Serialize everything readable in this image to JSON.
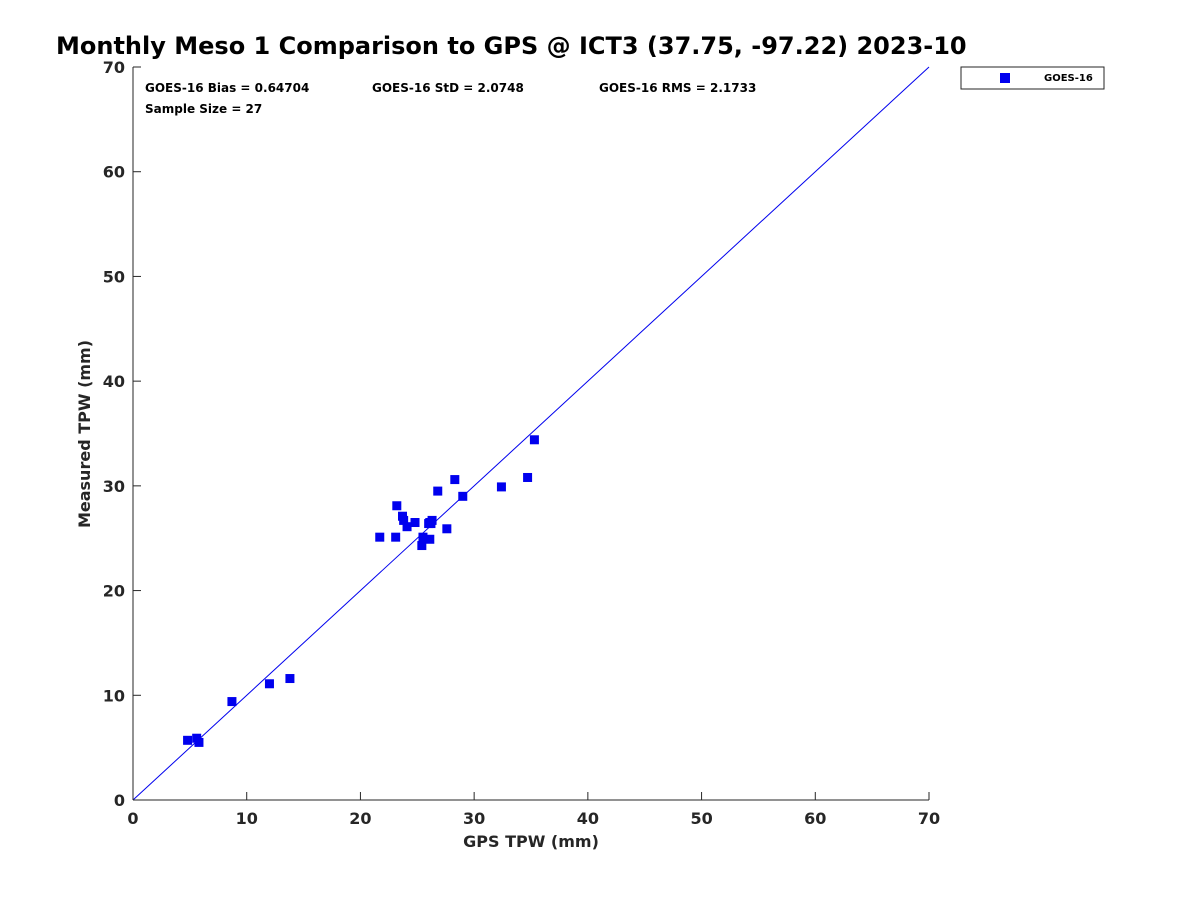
{
  "colors": {
    "series": "#0000ee",
    "axis": "#262626",
    "background": "#ffffff"
  },
  "chart_data": {
    "type": "scatter",
    "title": "Monthly Meso 1 Comparison to GPS @ ICT3 (37.75, -97.22) 2023-10",
    "xlabel": "GPS TPW (mm)",
    "ylabel": "Measured TPW (mm)",
    "xlim": [
      0,
      70
    ],
    "ylim": [
      0,
      70
    ],
    "xticks": [
      "0",
      "10",
      "20",
      "30",
      "40",
      "50",
      "60",
      "70"
    ],
    "yticks": [
      "0",
      "10",
      "20",
      "30",
      "40",
      "50",
      "60",
      "70"
    ],
    "grid": false,
    "legend_position": "top-right outside",
    "stats": {
      "bias": "GOES-16 Bias = 0.64704",
      "std": "GOES-16 StD = 2.0748",
      "rms": "GOES-16 RMS = 2.1733",
      "sample": "Sample Size = 27"
    },
    "reference_line": {
      "x": [
        0,
        70
      ],
      "y": [
        0,
        70
      ]
    },
    "series": [
      {
        "name": "GOES-16",
        "marker": "square",
        "color": "#0000ee",
        "points": [
          [
            4.8,
            5.7
          ],
          [
            5.6,
            5.9
          ],
          [
            5.8,
            5.5
          ],
          [
            8.7,
            9.4
          ],
          [
            12.0,
            11.1
          ],
          [
            13.8,
            11.6
          ],
          [
            21.7,
            25.1
          ],
          [
            23.1,
            25.1
          ],
          [
            23.2,
            28.1
          ],
          [
            23.7,
            27.1
          ],
          [
            23.8,
            26.7
          ],
          [
            24.1,
            26.1
          ],
          [
            24.8,
            26.5
          ],
          [
            25.4,
            24.3
          ],
          [
            25.5,
            25.1
          ],
          [
            26.1,
            24.9
          ],
          [
            26.1,
            26.5
          ],
          [
            26.2,
            26.4
          ],
          [
            26.3,
            26.7
          ],
          [
            26.8,
            29.5
          ],
          [
            27.6,
            25.9
          ],
          [
            28.3,
            30.6
          ],
          [
            29.0,
            29.0
          ],
          [
            32.4,
            29.9
          ],
          [
            34.7,
            30.8
          ],
          [
            35.3,
            34.4
          ],
          [
            26.0,
            26.4
          ]
        ]
      }
    ]
  }
}
